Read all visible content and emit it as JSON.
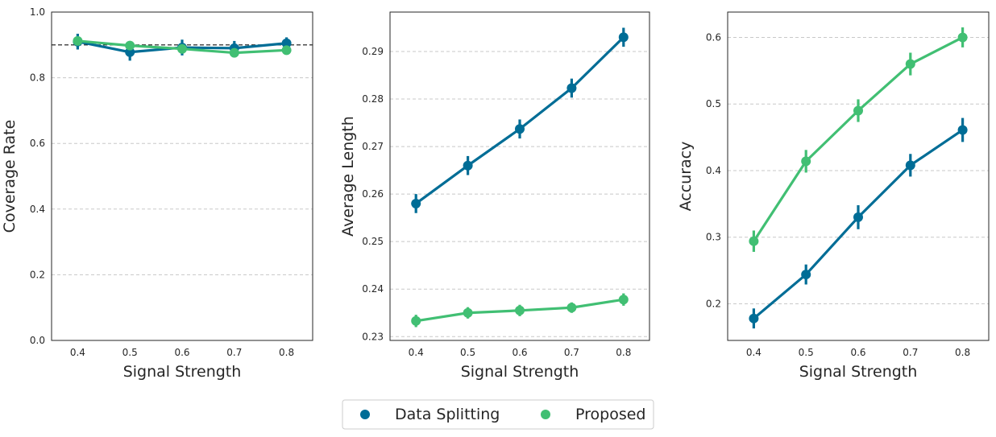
{
  "legend": {
    "items": [
      {
        "label": "Data Splitting",
        "color": "#006d96"
      },
      {
        "label": "Proposed",
        "color": "#41bf73"
      }
    ]
  },
  "chart_data": [
    {
      "type": "line",
      "xlabel": "Signal Strength",
      "ylabel": "Coverage Rate",
      "categories": [
        "0.4",
        "0.5",
        "0.6",
        "0.7",
        "0.8"
      ],
      "ylim": [
        0.0,
        1.0
      ],
      "yticks": [
        "0.0",
        "0.2",
        "0.4",
        "0.6",
        "0.8",
        "1.0"
      ],
      "grid": "horizontal dashed",
      "reference_line": 0.9,
      "series": [
        {
          "name": "Data Splitting",
          "color": "#006d96",
          "values": [
            0.91,
            0.878,
            0.892,
            0.89,
            0.905
          ],
          "ci": [
            0.024,
            0.026,
            0.024,
            0.022,
            0.018
          ]
        },
        {
          "name": "Proposed",
          "color": "#41bf73",
          "values": [
            0.912,
            0.898,
            0.888,
            0.876,
            0.884
          ],
          "ci": [
            0.012,
            0.012,
            0.012,
            0.012,
            0.012
          ]
        }
      ]
    },
    {
      "type": "line",
      "xlabel": "Signal Strength",
      "ylabel": "Average Length",
      "categories": [
        "0.4",
        "0.5",
        "0.6",
        "0.7",
        "0.8"
      ],
      "ylim": [
        0.2292,
        0.2983
      ],
      "yticks": [
        "0.23",
        "0.24",
        "0.25",
        "0.26",
        "0.27",
        "0.28",
        "0.29"
      ],
      "grid": "horizontal dashed",
      "series": [
        {
          "name": "Data Splitting",
          "color": "#006d96",
          "values": [
            0.258,
            0.266,
            0.2737,
            0.2823,
            0.293
          ],
          "ci": [
            0.002,
            0.002,
            0.002,
            0.002,
            0.002
          ]
        },
        {
          "name": "Proposed",
          "color": "#41bf73",
          "values": [
            0.2333,
            0.235,
            0.2355,
            0.2361,
            0.2378
          ],
          "ci": [
            0.0013,
            0.0012,
            0.0012,
            0.0011,
            0.0013
          ]
        }
      ]
    },
    {
      "type": "line",
      "xlabel": "Signal Strength",
      "ylabel": "Accuracy",
      "categories": [
        "0.4",
        "0.5",
        "0.6",
        "0.7",
        "0.8"
      ],
      "ylim": [
        0.145,
        0.638
      ],
      "yticks": [
        "0.2",
        "0.3",
        "0.4",
        "0.5",
        "0.6"
      ],
      "grid": "horizontal dashed",
      "series": [
        {
          "name": "Data Splitting",
          "color": "#006d96",
          "values": [
            0.178,
            0.244,
            0.33,
            0.408,
            0.461
          ],
          "ci": [
            0.015,
            0.015,
            0.018,
            0.017,
            0.018
          ]
        },
        {
          "name": "Proposed",
          "color": "#41bf73",
          "values": [
            0.294,
            0.414,
            0.49,
            0.56,
            0.6
          ],
          "ci": [
            0.016,
            0.017,
            0.017,
            0.017,
            0.015
          ]
        }
      ]
    }
  ]
}
